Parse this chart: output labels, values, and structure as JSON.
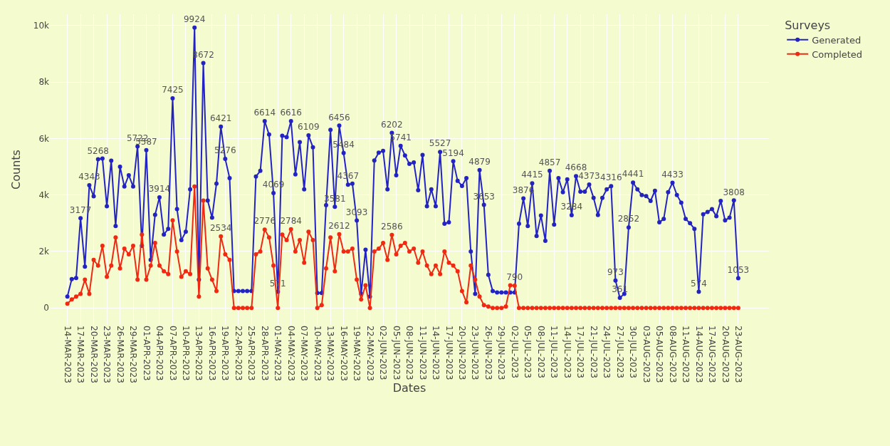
{
  "chart_data": {
    "type": "line",
    "xlabel": "Dates",
    "ylabel": "Counts",
    "legend_title": "Surveys",
    "categories": [
      "14-MAR-2023",
      null,
      null,
      "17-MAR-2023",
      null,
      null,
      "20-MAR-2023",
      null,
      null,
      "23-MAR-2023",
      null,
      null,
      "26-MAR-2023",
      null,
      null,
      "29-MAR-2023",
      null,
      null,
      "01-APR-2023",
      null,
      null,
      "04-APR-2023",
      null,
      null,
      "07-APR-2023",
      null,
      null,
      "10-APR-2023",
      null,
      null,
      "13-APR-2023",
      null,
      null,
      "16-APR-2023",
      null,
      null,
      "19-APR-2023",
      null,
      null,
      "22-APR-2023",
      null,
      null,
      "25-APR-2023",
      null,
      null,
      "28-APR-2023",
      null,
      null,
      "01-MAY-2023",
      null,
      null,
      "04-MAY-2023",
      null,
      null,
      "07-MAY-2023",
      null,
      null,
      "10-MAY-2023",
      null,
      null,
      "13-MAY-2023",
      null,
      null,
      "16-MAY-2023",
      null,
      null,
      "19-MAY-2023",
      null,
      null,
      "22-MAY-2023",
      null,
      null,
      "02-JUN-2023",
      null,
      null,
      "05-JUN-2023",
      null,
      null,
      "08-JUN-2023",
      null,
      null,
      "11-JUN-2023",
      null,
      null,
      "14-JUN-2023",
      null,
      null,
      "17-JUN-2023",
      null,
      null,
      "20-JUN-2023",
      null,
      null,
      "23-JUN-2023",
      null,
      null,
      "26-JUN-2023",
      null,
      null,
      "29-JUN-2023",
      null,
      null,
      "02-JUL-2023",
      null,
      null,
      "05-JUL-2023",
      null,
      null,
      "08-JUL-2023",
      null,
      null,
      "11-JUL-2023",
      null,
      null,
      "14-JUL-2023",
      null,
      null,
      "17-JUL-2023",
      null,
      null,
      "21-JUL-2023",
      null,
      null,
      "24-JUL-2023",
      null,
      null,
      "27-JUL-2023",
      null,
      null,
      "30-JUL-2023",
      null,
      null,
      "03-AUG-2023",
      null,
      null,
      "05-AUG-2023",
      null,
      null,
      "08-AUG-2023",
      null,
      null,
      "11-AUG-2023",
      null,
      null,
      "14-AUG-2023",
      null,
      null,
      "17-AUG-2023",
      null,
      null,
      "20-AUG-2023",
      null,
      null,
      "23-AUG-2023"
    ],
    "series": [
      {
        "name": "Generated",
        "color": "#2323c4",
        "values": [
          400,
          1020,
          1060,
          3177,
          1460,
          4343,
          3956,
          5268,
          5288,
          3600,
          5215,
          2900,
          5000,
          4300,
          4700,
          4300,
          5722,
          2200,
          5587,
          1700,
          3300,
          3914,
          2600,
          2800,
          7425,
          3500,
          2400,
          2700,
          4200,
          9924,
          1000,
          8672,
          3800,
          3200,
          4400,
          6421,
          5276,
          4600,
          600,
          600,
          600,
          600,
          600,
          4657,
          4854,
          6614,
          6140,
          4069,
          571,
          6100,
          6050,
          6616,
          4730,
          5870,
          4200,
          6109,
          5690,
          527,
          530,
          3640,
          6306,
          3581,
          6456,
          5484,
          4367,
          4400,
          3093,
          500,
          2060,
          400,
          5220,
          5500,
          5560,
          4200,
          6202,
          4700,
          5741,
          5400,
          5100,
          5150,
          4170,
          5415,
          3600,
          4200,
          3600,
          5527,
          2981,
          3030,
          5194,
          4500,
          4320,
          4600,
          2000,
          500,
          4879,
          3653,
          1170,
          600,
          550,
          550,
          550,
          550,
          550,
          2983,
          3876,
          2900,
          4415,
          2550,
          3270,
          2380,
          4857,
          2950,
          4600,
          4100,
          4550,
          3284,
          4668,
          4120,
          4120,
          4373,
          3900,
          3290,
          3900,
          4200,
          4316,
          973,
          361,
          500,
          2852,
          4441,
          4200,
          4000,
          3960,
          3790,
          4150,
          3030,
          3150,
          4100,
          4433,
          4000,
          3726,
          3150,
          3000,
          2800,
          574,
          3320,
          3400,
          3500,
          3250,
          3790,
          3100,
          3200,
          3808,
          1053
        ],
        "value_labels": [
          null,
          null,
          null,
          "3177",
          null,
          "4343",
          null,
          "5268",
          null,
          null,
          null,
          null,
          null,
          null,
          null,
          null,
          "5722",
          null,
          "5587",
          null,
          null,
          "3914",
          null,
          null,
          "7425",
          null,
          null,
          null,
          null,
          "9924",
          null,
          "8672",
          null,
          null,
          null,
          "6421",
          "5276",
          null,
          null,
          null,
          null,
          null,
          null,
          null,
          null,
          "6614",
          null,
          "4069",
          "571",
          null,
          null,
          "6616",
          null,
          null,
          null,
          "6109",
          null,
          null,
          null,
          null,
          null,
          "3581",
          "6456",
          "5484",
          "4367",
          null,
          "3093",
          null,
          null,
          null,
          null,
          null,
          null,
          null,
          "6202",
          null,
          "5741",
          null,
          null,
          null,
          null,
          null,
          null,
          null,
          null,
          "5527",
          null,
          null,
          "5194",
          null,
          null,
          null,
          null,
          null,
          "4879",
          "3653",
          null,
          null,
          null,
          null,
          null,
          null,
          null,
          null,
          "3876",
          null,
          "4415",
          null,
          null,
          null,
          "4857",
          null,
          null,
          null,
          null,
          "3284",
          "4668",
          null,
          null,
          "4373",
          null,
          null,
          null,
          null,
          "4316",
          "973",
          "361",
          null,
          "2852",
          "4441",
          null,
          null,
          null,
          null,
          null,
          null,
          null,
          null,
          "4433",
          null,
          null,
          null,
          null,
          null,
          "574",
          null,
          null,
          null,
          null,
          null,
          null,
          null,
          "3808",
          "1053"
        ]
      },
      {
        "name": "Completed",
        "color": "#f02a12",
        "values": [
          150,
          300,
          400,
          500,
          1000,
          500,
          1700,
          1500,
          2200,
          1100,
          1500,
          2500,
          1400,
          2100,
          1900,
          2200,
          1000,
          2600,
          1000,
          1500,
          2300,
          1500,
          1300,
          1200,
          3100,
          2000,
          1100,
          1300,
          1200,
          4300,
          400,
          3800,
          1400,
          1000,
          600,
          2534,
          1900,
          1700,
          0,
          0,
          0,
          0,
          0,
          1900,
          2000,
          2776,
          2500,
          1500,
          0,
          2600,
          2400,
          2784,
          2000,
          2400,
          1600,
          2700,
          2400,
          0,
          100,
          1400,
          2500,
          1300,
          2612,
          2000,
          2000,
          2100,
          1000,
          300,
          800,
          0,
          2000,
          2100,
          2300,
          1700,
          2586,
          1900,
          2200,
          2300,
          2000,
          2100,
          1600,
          2000,
          1500,
          1200,
          1500,
          1200,
          2000,
          1600,
          1500,
          1300,
          600,
          200,
          1500,
          1000,
          400,
          100,
          50,
          0,
          0,
          0,
          50,
          800,
          790,
          0,
          0,
          0,
          0,
          0,
          0,
          0,
          0,
          0,
          0,
          0,
          0,
          0,
          0,
          0,
          0,
          0,
          0,
          0,
          0,
          0,
          0,
          0,
          0,
          0,
          0,
          0,
          0,
          0,
          0,
          0,
          0,
          0,
          0,
          0,
          0,
          0,
          0,
          0,
          0,
          0,
          0,
          0,
          0,
          0,
          0,
          0,
          0,
          0,
          0,
          0
        ],
        "value_labels": [
          null,
          null,
          null,
          null,
          null,
          null,
          null,
          null,
          null,
          null,
          null,
          null,
          null,
          null,
          null,
          null,
          null,
          null,
          null,
          null,
          null,
          null,
          null,
          null,
          null,
          null,
          null,
          null,
          null,
          null,
          null,
          null,
          null,
          null,
          null,
          "2534",
          null,
          null,
          null,
          null,
          null,
          null,
          null,
          null,
          null,
          "2776",
          null,
          null,
          null,
          null,
          null,
          "2784",
          null,
          null,
          null,
          null,
          null,
          null,
          null,
          null,
          null,
          null,
          "2612",
          null,
          null,
          null,
          null,
          null,
          null,
          null,
          null,
          null,
          null,
          null,
          "2586",
          null,
          null,
          null,
          null,
          null,
          null,
          null,
          null,
          null,
          null,
          null,
          null,
          null,
          null,
          null,
          null,
          null,
          null,
          null,
          null,
          null,
          null,
          null,
          null,
          null,
          null,
          null,
          "790",
          null,
          null,
          null,
          null,
          null,
          null,
          null,
          null,
          null,
          null,
          null,
          null,
          null,
          null,
          null,
          null,
          null,
          null,
          null,
          null,
          null,
          null,
          null,
          null,
          null,
          null,
          null,
          null,
          null,
          null,
          null,
          null,
          null,
          null,
          null,
          null,
          null,
          null,
          null,
          null,
          null,
          null,
          null,
          null,
          null,
          null,
          null,
          null,
          null,
          null,
          null
        ]
      }
    ],
    "ylim": [
      -600,
      10400
    ],
    "yticks": [
      0,
      {
        "value": 2000,
        "label": "2k"
      },
      {
        "value": 4000,
        "label": "4k"
      },
      {
        "value": 6000,
        "label": "6k"
      },
      {
        "value": 8000,
        "label": "8k"
      },
      {
        "value": 10000,
        "label": "10k"
      }
    ],
    "grid": true,
    "legend": "top right",
    "marker": "circle",
    "line_style": "solid"
  }
}
